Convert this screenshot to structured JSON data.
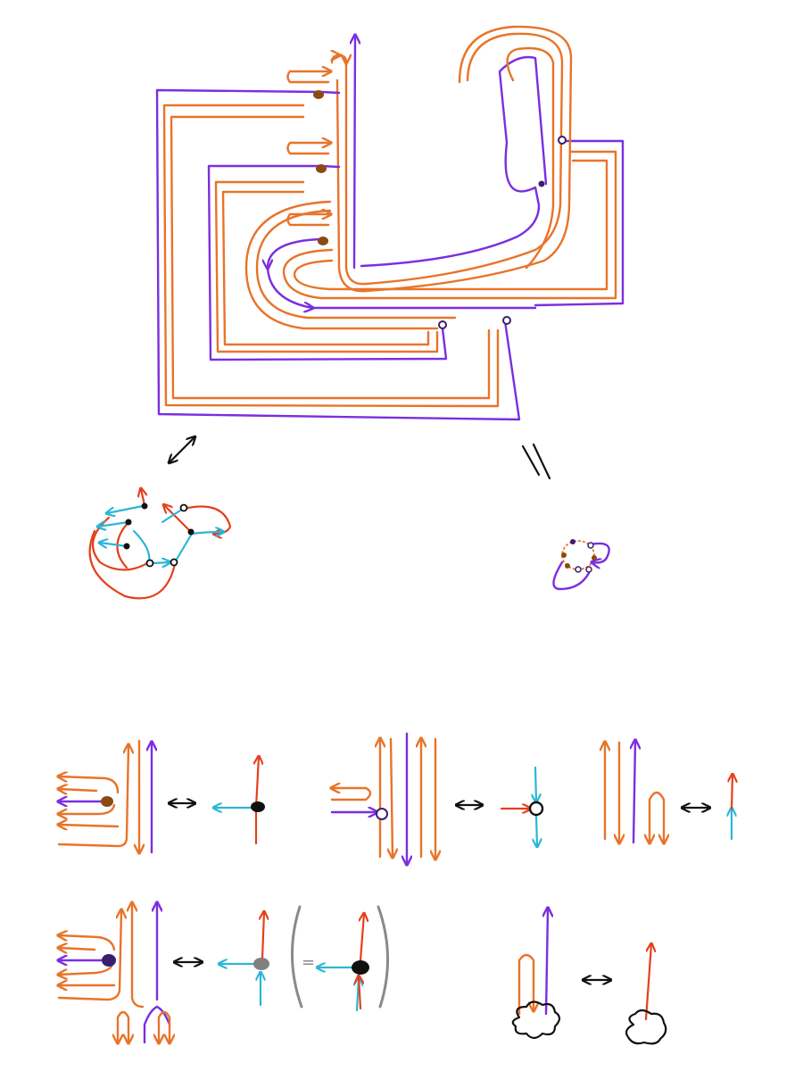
{
  "colors": {
    "orange": "#e8742a",
    "purple": "#7b2ee0",
    "red": "#e5401c",
    "cyan": "#2bb6d6",
    "brown": "#8b4a12",
    "dark_purple": "#3a1f6e",
    "gray_dot": "#808080",
    "black": "#111111"
  },
  "figure": {
    "equals_sign": "="
  },
  "rules": [
    {
      "id": "rule-brown-vertex",
      "left": "ribbon-brown-dot",
      "relation": "double-arrow",
      "right": "black-trivalent-vertex"
    },
    {
      "id": "rule-white-vertex",
      "left": "ribbon-white-dot",
      "relation": "double-arrow",
      "right": "white-trivalent-vertex"
    },
    {
      "id": "rule-cup",
      "left": "ribbon-cup",
      "relation": "double-arrow",
      "right": "red-cyan-edge"
    },
    {
      "id": "rule-dark-vertex",
      "left": "ribbon-dark-purple-dot",
      "relation": "double-arrow",
      "right": "gray-vertex-equals-black-vertex"
    },
    {
      "id": "rule-boundary",
      "left": "ribbon-cloud",
      "relation": "double-arrow",
      "right": "red-edge-cloud"
    }
  ]
}
